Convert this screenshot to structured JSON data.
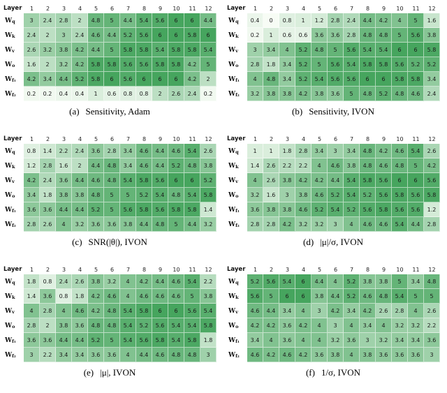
{
  "shared": {
    "corner_label": "Layer",
    "columns": [
      "1",
      "2",
      "3",
      "4",
      "5",
      "6",
      "7",
      "8",
      "9",
      "10",
      "11",
      "12"
    ],
    "row_labels": [
      [
        "W",
        "q"
      ],
      [
        "W",
        "k"
      ],
      [
        "W",
        "v"
      ],
      [
        "W",
        "o"
      ],
      [
        "W",
        "f₁"
      ],
      [
        "W",
        "f₂"
      ]
    ],
    "color_min": "#f7fcf5",
    "color_max": "#46a55e",
    "vmin": 0,
    "vmax": 6
  },
  "chart_data": [
    {
      "type": "heatmap",
      "caption_letter": "(a)",
      "caption_text": "Sensitivity, Adam",
      "x_labels": [
        "1",
        "2",
        "3",
        "4",
        "5",
        "6",
        "7",
        "8",
        "9",
        "10",
        "11",
        "12"
      ],
      "y_labels": [
        "Wq",
        "Wk",
        "Wv",
        "Wo",
        "Wf1",
        "Wf2"
      ],
      "values": [
        [
          3,
          2.4,
          2.8,
          2,
          4.8,
          5,
          4.4,
          5.4,
          5.6,
          6,
          6,
          4.4
        ],
        [
          2.4,
          2,
          3,
          2.4,
          4.6,
          4.4,
          5.2,
          5.6,
          6,
          6,
          5.8,
          6
        ],
        [
          2.6,
          3.2,
          3.8,
          4.2,
          4.4,
          5,
          5.8,
          5.8,
          5.4,
          5.8,
          5.8,
          5.4
        ],
        [
          1.6,
          2,
          3.2,
          4.2,
          5.8,
          5.8,
          5.6,
          5.6,
          5.8,
          5.8,
          4.2,
          5
        ],
        [
          4.2,
          3.4,
          4.4,
          5.2,
          5.8,
          6,
          5.6,
          6,
          6,
          6,
          4.2,
          2
        ],
        [
          0.2,
          0.2,
          0.4,
          0.4,
          1,
          0.6,
          0.8,
          0.8,
          2,
          2.6,
          2.4,
          0.2
        ]
      ]
    },
    {
      "type": "heatmap",
      "caption_letter": "(b)",
      "caption_text": "Sensitivity, IVON",
      "x_labels": [
        "1",
        "2",
        "3",
        "4",
        "5",
        "6",
        "7",
        "8",
        "9",
        "10",
        "11",
        "12"
      ],
      "y_labels": [
        "Wq",
        "Wk",
        "Wv",
        "Wo",
        "Wf1",
        "Wf2"
      ],
      "values": [
        [
          0.4,
          0,
          0.8,
          1,
          1.2,
          2.8,
          2.4,
          4.4,
          4.2,
          4,
          5,
          1.6
        ],
        [
          0.2,
          1,
          0.6,
          0.6,
          3.6,
          3.6,
          2.8,
          4.8,
          4.8,
          5,
          5.6,
          3.8
        ],
        [
          3,
          3.4,
          4,
          5.2,
          4.8,
          5,
          5.6,
          5.4,
          5.4,
          6,
          6,
          5.8
        ],
        [
          2.8,
          1.8,
          3.4,
          5.2,
          5,
          5.6,
          5.4,
          5.8,
          5.8,
          5.6,
          5.2,
          5.2
        ],
        [
          4,
          4.8,
          3.4,
          5.2,
          5.4,
          5.6,
          5.6,
          6,
          6,
          5.8,
          5.8,
          3.4
        ],
        [
          3.2,
          3.8,
          3.8,
          4.2,
          3.8,
          3.6,
          5,
          4.8,
          5.2,
          4.8,
          4.6,
          2.4
        ]
      ]
    },
    {
      "type": "heatmap",
      "caption_letter": "(c)",
      "caption_text": "SNR(|θ|), IVON",
      "x_labels": [
        "1",
        "2",
        "3",
        "4",
        "5",
        "6",
        "7",
        "8",
        "9",
        "10",
        "11",
        "12"
      ],
      "y_labels": [
        "Wq",
        "Wk",
        "Wv",
        "Wo",
        "Wf1",
        "Wf2"
      ],
      "values": [
        [
          0.8,
          1.4,
          2.2,
          2.4,
          3.6,
          2.8,
          3.4,
          4.6,
          4.4,
          4.6,
          5.4,
          2.6
        ],
        [
          1.2,
          2.8,
          1.6,
          2,
          4.4,
          4.8,
          3.4,
          4.6,
          4.4,
          5.2,
          4.8,
          3.8
        ],
        [
          4.2,
          2.4,
          3.6,
          4.4,
          4.6,
          4.8,
          5.4,
          5.8,
          5.6,
          6,
          6,
          5.2
        ],
        [
          3.4,
          1.8,
          3.8,
          3.8,
          4.8,
          5,
          5,
          5.2,
          5.4,
          4.8,
          5.4,
          5.8
        ],
        [
          3.6,
          3.6,
          4.4,
          4.4,
          5.2,
          5,
          5.6,
          5.8,
          5.6,
          5.8,
          5.8,
          1.4
        ],
        [
          2.8,
          2.6,
          4,
          3.2,
          3.6,
          3.6,
          3.8,
          4.4,
          4.8,
          5,
          4.4,
          3.2
        ]
      ]
    },
    {
      "type": "heatmap",
      "caption_letter": "(d)",
      "caption_text": "|μ|/σ, IVON",
      "x_labels": [
        "1",
        "2",
        "3",
        "4",
        "5",
        "6",
        "7",
        "8",
        "9",
        "10",
        "11",
        "12"
      ],
      "y_labels": [
        "Wq",
        "Wk",
        "Wv",
        "Wo",
        "Wf1",
        "Wf2"
      ],
      "values": [
        [
          1,
          1,
          1.8,
          2.8,
          3.4,
          3,
          3.4,
          4.8,
          4.2,
          4.6,
          5.4,
          2.6
        ],
        [
          1.4,
          2.6,
          2.2,
          2.2,
          4,
          4.6,
          3.8,
          4.8,
          4.6,
          4.8,
          5,
          4.2
        ],
        [
          4,
          2.6,
          3.8,
          4.2,
          4.2,
          4.4,
          5.4,
          5.8,
          5.6,
          6,
          6,
          5.6
        ],
        [
          3.2,
          1.6,
          3,
          3.8,
          4.6,
          5.2,
          5.4,
          5.2,
          5.6,
          5.8,
          5.6,
          5.8
        ],
        [
          3.6,
          3.8,
          3.8,
          4.6,
          5.2,
          5.4,
          5.2,
          5.6,
          5.8,
          5.6,
          5.6,
          1.2
        ],
        [
          2.8,
          2.8,
          4.2,
          3.2,
          3.2,
          3,
          4,
          4.6,
          4.6,
          5.4,
          4.4,
          2.8
        ]
      ]
    },
    {
      "type": "heatmap",
      "caption_letter": "(e)",
      "caption_text": "|μ|, IVON",
      "x_labels": [
        "1",
        "2",
        "3",
        "4",
        "5",
        "6",
        "7",
        "8",
        "9",
        "10",
        "11",
        "12"
      ],
      "y_labels": [
        "Wq",
        "Wk",
        "Wv",
        "Wo",
        "Wf1",
        "Wf2"
      ],
      "values": [
        [
          1.8,
          0.8,
          2.4,
          2.6,
          3.8,
          3.2,
          4,
          4.2,
          4.4,
          4.6,
          5.4,
          2.2
        ],
        [
          1.4,
          3.6,
          0.8,
          1.8,
          4.2,
          4.6,
          4,
          4.6,
          4.6,
          4.6,
          5,
          3.8
        ],
        [
          4,
          2.8,
          4,
          4.6,
          4.2,
          4.8,
          5.4,
          5.8,
          6,
          6,
          5.6,
          5.4
        ],
        [
          2.8,
          2,
          3.8,
          3.6,
          4.8,
          4.8,
          5.4,
          5.2,
          5.6,
          5.4,
          5.4,
          5.8
        ],
        [
          3.6,
          3.6,
          4.4,
          4.4,
          5.2,
          5,
          5.4,
          5.6,
          5.8,
          5.4,
          5.8,
          1.8
        ],
        [
          3,
          2.2,
          3.4,
          3.4,
          3.6,
          3.6,
          4,
          4.4,
          4.6,
          4.8,
          4.8,
          3
        ]
      ]
    },
    {
      "type": "heatmap",
      "caption_letter": "(f)",
      "caption_text": "1/σ, IVON",
      "x_labels": [
        "1",
        "2",
        "3",
        "4",
        "5",
        "6",
        "7",
        "8",
        "9",
        "10",
        "11",
        "12"
      ],
      "y_labels": [
        "Wq",
        "Wk",
        "Wv",
        "Wo",
        "Wf1",
        "Wf2"
      ],
      "values": [
        [
          5.2,
          5.6,
          5.4,
          6,
          4.4,
          4,
          5.2,
          3.8,
          3.8,
          5,
          3.4,
          4.8
        ],
        [
          5.6,
          5,
          6,
          6,
          3.8,
          4.4,
          5.2,
          4.6,
          4.8,
          5.4,
          5,
          5
        ],
        [
          4.6,
          4.4,
          3.4,
          4,
          3,
          4.2,
          3.4,
          4.2,
          2.6,
          2.8,
          4,
          2.6
        ],
        [
          4.2,
          4.2,
          3.6,
          4.2,
          4,
          3,
          4,
          3.4,
          4,
          3.2,
          3.2,
          2.2
        ],
        [
          3.4,
          4,
          3.6,
          4,
          4,
          3.2,
          3.6,
          3,
          3.2,
          3.4,
          3.4,
          3.6
        ],
        [
          4.6,
          4.2,
          4.6,
          4.2,
          3.6,
          3.8,
          4,
          3.8,
          3.6,
          3.6,
          3.6,
          3
        ]
      ]
    }
  ]
}
